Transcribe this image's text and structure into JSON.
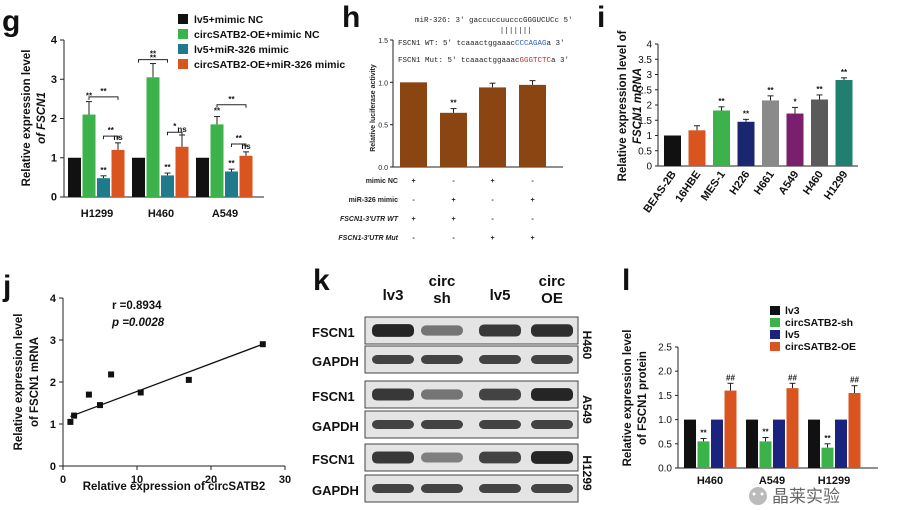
{
  "panel_labels": {
    "g": "g",
    "h": "h",
    "i": "i",
    "j": "j",
    "k": "k",
    "l": "l"
  },
  "watermark": "晶莱实验",
  "chart_data": [
    {
      "panel": "g",
      "type": "bar",
      "categories": [
        "H1299",
        "H460",
        "A549"
      ],
      "ylabel_line1": "Relative expression level",
      "ylabel_line2": "of FSCN1",
      "ylim": [
        0,
        4
      ],
      "yticks": [
        "0",
        "1",
        "2",
        "3",
        "4"
      ],
      "series": [
        {
          "name": "lv5+mimic NC",
          "color": "#111111",
          "values": [
            1,
            1,
            1
          ],
          "errors": [
            0,
            0,
            0
          ],
          "sig": [
            "",
            "",
            ""
          ]
        },
        {
          "name": "circSATB2-OE+mimic NC",
          "color": "#3cb34a",
          "values": [
            2.1,
            3.05,
            1.85
          ],
          "errors": [
            0.33,
            0.35,
            0.2
          ],
          "sig": [
            "**",
            "**",
            "**"
          ]
        },
        {
          "name": "lv5+miR-326 mimic",
          "color": "#1f7a8c",
          "values": [
            0.48,
            0.55,
            0.65
          ],
          "errors": [
            0.06,
            0.06,
            0.06
          ],
          "sig": [
            "**",
            "**",
            "**"
          ]
        },
        {
          "name": "circSATB2-OE+miR-326 mimic",
          "color": "#d9541e",
          "values": [
            1.2,
            1.28,
            1.05
          ],
          "errors": [
            0.18,
            0.3,
            0.1
          ],
          "sig": [
            "ns",
            "ns",
            "ns"
          ]
        }
      ],
      "brackets": [
        {
          "group": 0,
          "from": 1,
          "to": 3,
          "level": 2.55,
          "label": "**"
        },
        {
          "group": 0,
          "from": 2,
          "to": 3,
          "level": 1.55,
          "label": "**"
        },
        {
          "group": 0,
          "from": 0,
          "to": 2,
          "level": -1,
          "label": ""
        },
        {
          "group": 1,
          "from": 0,
          "to": 2,
          "level": 3.5,
          "label": "**"
        },
        {
          "group": 1,
          "from": 2,
          "to": 3,
          "level": 1.65,
          "label": "*"
        },
        {
          "group": 2,
          "from": 1,
          "to": 3,
          "level": 2.35,
          "label": "**"
        },
        {
          "group": 2,
          "from": 2,
          "to": 3,
          "level": 1.35,
          "label": "**"
        }
      ]
    },
    {
      "panel": "h",
      "type": "bar",
      "ylabel": "Relative luciferase activity",
      "ylim": [
        0,
        1.5
      ],
      "yticks": [
        "0.0",
        "0.5",
        "1.0",
        "1.5"
      ],
      "values": [
        1.0,
        0.64,
        0.94,
        0.97
      ],
      "errors": [
        0,
        0.05,
        0.05,
        0.05
      ],
      "sig": [
        "",
        "**",
        "",
        ""
      ],
      "color": "#8b4513",
      "table_rows": [
        {
          "label": "mimic NC",
          "marks": [
            "+",
            "-",
            "+",
            "-"
          ]
        },
        {
          "label": "miR-326 mimic",
          "marks": [
            "-",
            "+",
            "-",
            "+"
          ]
        },
        {
          "label": "FSCN1-3'UTR WT",
          "marks": [
            "+",
            "+",
            "-",
            "-"
          ]
        },
        {
          "label": "FSCN1-3'UTR Mut",
          "marks": [
            "-",
            "-",
            "+",
            "+"
          ]
        }
      ],
      "seq_mir": "miR-326: 3'  gaccuccuucccGGGUCUCc  5'",
      "seq_wt_prefix": "FSCN1 WT: 5'  tcaaactggaaac",
      "seq_wt_site": "CCCAGAG",
      "seq_wt_suffix": "a  3'",
      "seq_mut_prefix": "FSCN1 Mut: 5'  tcaaactggaaac",
      "seq_mut_site": "GGGTCTC",
      "seq_mut_suffix": "a  3'"
    },
    {
      "panel": "i",
      "type": "bar",
      "ylabel_line1": "Relative expression level of",
      "ylabel_line2": "FSCN1 mRNA",
      "ylim": [
        0,
        4
      ],
      "yticks": [
        "0",
        "0.5",
        "1",
        "1.5",
        "2",
        "2.5",
        "3",
        "3.5",
        "4"
      ],
      "categories": [
        "BEAS-2B",
        "16HBE",
        "MES-1",
        "H226",
        "H661",
        "A549",
        "H460",
        "H1299"
      ],
      "values": [
        1.0,
        1.17,
        1.82,
        1.45,
        2.15,
        1.72,
        2.18,
        2.82
      ],
      "errors": [
        0,
        0.15,
        0.12,
        0.08,
        0.15,
        0.2,
        0.15,
        0.07
      ],
      "sig": [
        "",
        "",
        "**",
        "**",
        "**",
        "*",
        "**",
        "**"
      ],
      "colors": [
        "#111111",
        "#d9541e",
        "#3cb34a",
        "#1a2670",
        "#8a8a8a",
        "#7a1f6e",
        "#5a5a5a",
        "#1f8070"
      ]
    },
    {
      "panel": "j",
      "type": "scatter",
      "xlabel": "Relative expression of  circSATB2",
      "ylabel_line1": "Relative expression level",
      "ylabel_line2": "of FSCN1 mRNA",
      "xlim": [
        0,
        30
      ],
      "ylim": [
        0,
        4
      ],
      "xticks": [
        "0",
        "10",
        "20",
        "30"
      ],
      "yticks": [
        "0",
        "1",
        "2",
        "3",
        "4"
      ],
      "points": [
        [
          1,
          1.05
        ],
        [
          1.5,
          1.2
        ],
        [
          3.5,
          1.7
        ],
        [
          5,
          1.45
        ],
        [
          6.5,
          2.18
        ],
        [
          10.5,
          1.75
        ],
        [
          17,
          2.05
        ],
        [
          27,
          2.9
        ]
      ],
      "fit": [
        [
          1,
          1.18
        ],
        [
          27,
          2.9
        ]
      ],
      "r_text": "r =0.8934",
      "p_text": "p =0.0028"
    },
    {
      "panel": "l",
      "type": "bar",
      "categories": [
        "H460",
        "A549",
        "H1299"
      ],
      "ylabel_line1": "Relative expression level",
      "ylabel_line2": "of FSCN1 protein",
      "ylim": [
        0,
        2.5
      ],
      "yticks": [
        "0.0",
        "0.5",
        "1.0",
        "1.5",
        "2.0",
        "2.5"
      ],
      "series": [
        {
          "name": "lv3",
          "color": "#111111",
          "values": [
            1,
            1,
            1
          ],
          "errors": [
            0,
            0,
            0
          ],
          "sig": [
            "",
            "",
            ""
          ]
        },
        {
          "name": "circSATB2-sh",
          "color": "#3cb34a",
          "values": [
            0.55,
            0.55,
            0.42
          ],
          "errors": [
            0.06,
            0.08,
            0.08
          ],
          "sig": [
            "**",
            "**",
            "**"
          ]
        },
        {
          "name": "lv5",
          "color": "#1a237e",
          "values": [
            1,
            1,
            1
          ],
          "errors": [
            0,
            0,
            0
          ],
          "sig": [
            "",
            "",
            ""
          ]
        },
        {
          "name": "circSATB2-OE",
          "color": "#d9541e",
          "values": [
            1.6,
            1.65,
            1.55
          ],
          "errors": [
            0.15,
            0.1,
            0.15
          ],
          "sig": [
            "##",
            "##",
            "##"
          ]
        }
      ]
    }
  ],
  "blot": {
    "lanes": [
      [
        "lv3",
        ""
      ],
      [
        "circ",
        "sh"
      ],
      [
        "lv5",
        ""
      ],
      [
        "circ",
        "OE"
      ]
    ],
    "groups": [
      {
        "cell": "H460",
        "rows": [
          {
            "label": "FSCN1",
            "intens": [
              0.95,
              0.55,
              0.85,
              0.9
            ]
          },
          {
            "label": "GAPDH",
            "intens": [
              0.8,
              0.8,
              0.8,
              0.8
            ]
          }
        ]
      },
      {
        "cell": "A549",
        "rows": [
          {
            "label": "FSCN1",
            "intens": [
              0.85,
              0.55,
              0.8,
              0.95
            ]
          },
          {
            "label": "GAPDH",
            "intens": [
              0.8,
              0.8,
              0.8,
              0.8
            ]
          }
        ]
      },
      {
        "cell": "H1299",
        "rows": [
          {
            "label": "FSCN1",
            "intens": [
              0.85,
              0.5,
              0.8,
              0.95
            ]
          },
          {
            "label": "GAPDH",
            "intens": [
              0.8,
              0.8,
              0.8,
              0.8
            ]
          }
        ]
      }
    ]
  }
}
